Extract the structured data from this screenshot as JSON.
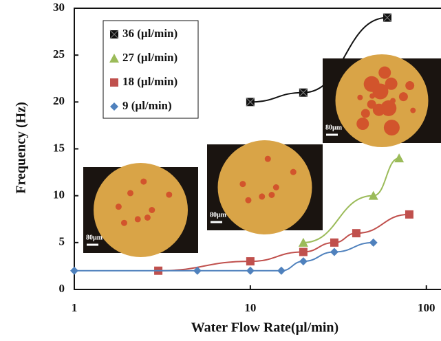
{
  "chart_data": {
    "type": "line",
    "log_x": true,
    "x_label": "Water Flow Rate(µl/min)",
    "y_label": "Frequency (Hz)",
    "xlim": [
      1,
      120
    ],
    "ylim": [
      0,
      30
    ],
    "xticks": [
      1,
      10,
      100
    ],
    "yticks": [
      0,
      5,
      10,
      15,
      20,
      25,
      30
    ],
    "series": [
      {
        "name": "36 (µl/min)",
        "color": "#111111",
        "marker": "square-x",
        "x": [
          10,
          20,
          60
        ],
        "values": [
          20,
          21,
          29
        ]
      },
      {
        "name": "27 (µl/min)",
        "color": "#9bbb59",
        "marker": "triangle",
        "x": [
          20,
          50,
          70
        ],
        "values": [
          5,
          10,
          14
        ]
      },
      {
        "name": "18 (µl/min)",
        "color": "#c0504d",
        "marker": "square",
        "x": [
          3,
          10,
          20,
          30,
          40,
          80
        ],
        "values": [
          2,
          3,
          4,
          5,
          6,
          8
        ]
      },
      {
        "name": "9 (µl/min)",
        "color": "#4f81bd",
        "marker": "diamond",
        "x": [
          1,
          5,
          10,
          15,
          20,
          30,
          50
        ],
        "values": [
          2,
          2,
          2,
          2,
          3,
          4,
          5
        ]
      }
    ],
    "insets": [
      {
        "scale_label": "80µm"
      },
      {
        "scale_label": "80µm"
      },
      {
        "scale_label": "80µm"
      }
    ]
  }
}
